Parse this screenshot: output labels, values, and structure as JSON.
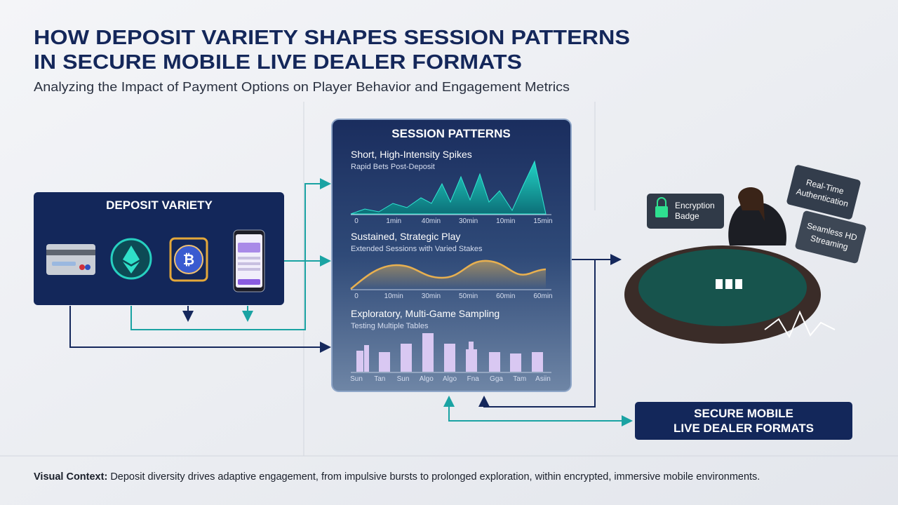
{
  "header": {
    "title_lines": [
      "HOW DEPOSIT VARIETY SHAPES SESSION PATTERNS",
      "IN SECURE MOBILE LIVE DEALER FORMATS"
    ],
    "subtitle": "Analyzing the Impact of Payment Options on Player Behavior and Engagement Metrics"
  },
  "deposit_panel": {
    "title": "DEPOSIT VARIETY"
  },
  "session_panel": {
    "title": "SESSION PATTERNS",
    "sections": [
      {
        "title": "Short, High-Intensity Spikes",
        "subtitle": "Rapid Bets Post-Deposit",
        "axis_labels": [
          "0",
          "1min",
          "40min",
          "30min",
          "10min",
          "15min"
        ]
      },
      {
        "title": "Sustained, Strategic Play",
        "subtitle": "Extended Sessions with Varied Stakes",
        "axis_labels": [
          "0",
          "10min",
          "30min",
          "50min",
          "60min",
          "60min"
        ]
      },
      {
        "title": "Exploratory, Multi-Game Sampling",
        "subtitle": "Testing Multiple Tables",
        "axis_labels": [
          "Sun",
          "Tan",
          "Sun",
          "Algo",
          "Algo",
          "Fna",
          "Gga",
          "Tam",
          "Asiin"
        ]
      }
    ]
  },
  "dealer_scene": {
    "badges": [
      [
        "Encryption",
        "Badge"
      ],
      [
        "Real-Time",
        "Authentication"
      ],
      [
        "Seamless HD",
        "Streaming"
      ]
    ]
  },
  "output_box": {
    "lines": [
      "SECURE MOBILE",
      "LIVE DEALER FORMATS"
    ]
  },
  "footer": {
    "label": "Visual Context:",
    "text": "Deposit diversity drives adaptive engagement, from impulsive bursts to prolonged exploration, within encrypted, immersive mobile environments."
  }
}
